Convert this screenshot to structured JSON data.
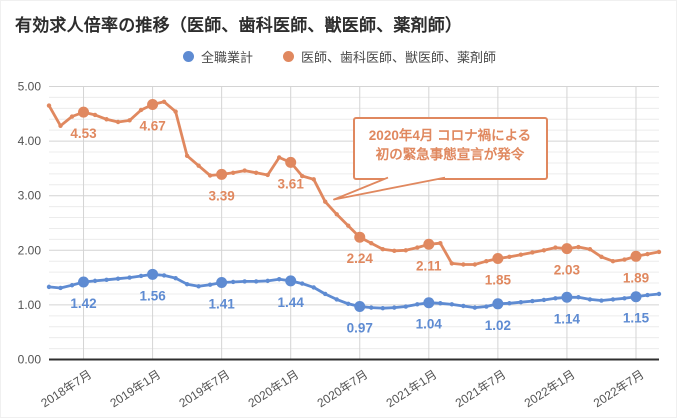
{
  "title": "有効求人倍率の推移（医師、歯科医師、獣医師、薬剤師）",
  "legend": [
    {
      "label": "全職業計",
      "color": "#5e8bd2",
      "marker": "circle-icon"
    },
    {
      "label": "医師、歯科医師、獣医師、薬剤師",
      "color": "#e0885f",
      "marker": "circle-icon"
    }
  ],
  "annotation": {
    "line1": "2020年4月 コロナ禍による",
    "line2": "初の緊急事態宣言が発令",
    "color": "#e0885f",
    "points_to": "2020年4月"
  },
  "chart_data": {
    "type": "line",
    "title": "有効求人倍率の推移（医師、歯科医師、獣医師、薬剤師）",
    "x_start": "2018年4月",
    "x_end": "2022年9月",
    "x_interval": "monthly",
    "x_tick_labels": [
      "2018年7月",
      "2019年1月",
      "2019年7月",
      "2020年1月",
      "2020年7月",
      "2021年1月",
      "2021年7月",
      "2022年1月",
      "2022年7月"
    ],
    "x_tick_indices": [
      3,
      9,
      15,
      21,
      27,
      33,
      39,
      45,
      51
    ],
    "y_ticks": [
      "0.00",
      "1.00",
      "2.00",
      "3.00",
      "4.00",
      "5.00"
    ],
    "ylim": [
      0,
      5
    ],
    "minor_grid_step": 0.2,
    "grid": true,
    "legend_position": "top",
    "colors": {
      "baseline": "#2f2f2f",
      "major_grid": "#d4d4d4",
      "minor_grid": "#ececec",
      "tick_text": "#535353"
    },
    "series": [
      {
        "name": "全職業計",
        "color": "#5e8bd2",
        "values": [
          1.33,
          1.31,
          1.36,
          1.42,
          1.44,
          1.46,
          1.48,
          1.5,
          1.53,
          1.56,
          1.54,
          1.49,
          1.38,
          1.34,
          1.37,
          1.41,
          1.42,
          1.43,
          1.43,
          1.44,
          1.47,
          1.44,
          1.39,
          1.32,
          1.2,
          1.1,
          1.02,
          0.97,
          0.95,
          0.94,
          0.95,
          0.97,
          1.01,
          1.04,
          1.03,
          1.01,
          0.98,
          0.95,
          0.97,
          1.02,
          1.03,
          1.05,
          1.07,
          1.09,
          1.12,
          1.14,
          1.14,
          1.1,
          1.08,
          1.1,
          1.12,
          1.15,
          1.18,
          1.2
        ]
      },
      {
        "name": "医師、歯科医師、獣医師、薬剤師",
        "color": "#e0885f",
        "values": [
          4.65,
          4.28,
          4.45,
          4.53,
          4.48,
          4.4,
          4.35,
          4.38,
          4.57,
          4.67,
          4.72,
          4.54,
          3.73,
          3.55,
          3.37,
          3.39,
          3.42,
          3.46,
          3.42,
          3.38,
          3.7,
          3.61,
          3.36,
          3.3,
          2.89,
          2.66,
          2.45,
          2.24,
          2.13,
          2.02,
          1.99,
          2.0,
          2.05,
          2.11,
          2.13,
          1.76,
          1.74,
          1.74,
          1.8,
          1.85,
          1.88,
          1.92,
          1.96,
          2.0,
          2.05,
          2.03,
          2.06,
          2.02,
          1.88,
          1.8,
          1.83,
          1.89,
          1.93,
          1.97
        ]
      }
    ],
    "labeled_values": {
      "全職業計": [
        1.42,
        1.56,
        1.41,
        1.44,
        0.97,
        1.04,
        1.02,
        1.14,
        1.15
      ],
      "医師、歯科医師、獣医師、薬剤師": [
        4.53,
        4.67,
        3.39,
        3.61,
        2.24,
        2.11,
        1.85,
        2.03,
        1.89
      ]
    }
  }
}
